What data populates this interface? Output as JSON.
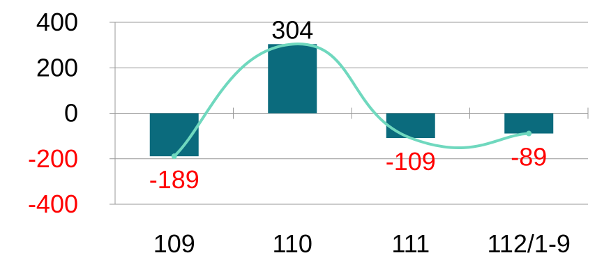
{
  "chart_data": {
    "type": "bar",
    "categories": [
      "109",
      "110",
      "111",
      "112/1-9"
    ],
    "values": [
      -189,
      304,
      -109,
      -89
    ],
    "data_labels": [
      "-189",
      "304",
      "-109",
      "-89"
    ],
    "yticks": [
      "400",
      "200",
      "0",
      "-200",
      "-400"
    ],
    "ylim": [
      -400,
      400
    ],
    "grid": true,
    "trendline": "smooth",
    "title": "",
    "xlabel": "",
    "ylabel": "",
    "colors": {
      "bar": "#0b6b7d",
      "trend": "#6fd8be",
      "negative_text": "#ff0000",
      "positive_text": "#000000",
      "axis": "#999999"
    }
  }
}
